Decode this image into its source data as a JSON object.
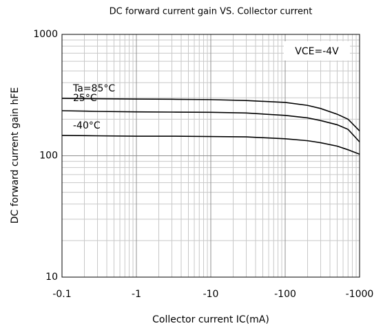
{
  "chart_data": {
    "type": "line",
    "title": "DC forward current gain VS. Collector current",
    "xlabel": "Collector current  IC(mA)",
    "ylabel": "DC forward current gain hFE",
    "annotation": "VCE=-4V",
    "x": [
      -0.1,
      -0.3,
      -1,
      -3,
      -10,
      -30,
      -100,
      -200,
      -300,
      -500,
      -700,
      -1000
    ],
    "series": [
      {
        "name": "Ta=85°C",
        "color": "#000000",
        "values": [
          297,
          295,
          293,
          292,
          290,
          285,
          275,
          260,
          245,
          220,
          200,
          160
        ]
      },
      {
        "name": "25°C",
        "color": "#000000",
        "values": [
          235,
          232,
          230,
          229,
          228,
          225,
          215,
          205,
          195,
          180,
          165,
          130
        ]
      },
      {
        "name": "-40°C",
        "color": "#000000",
        "values": [
          147,
          146,
          145,
          145,
          144,
          143,
          138,
          133,
          128,
          120,
          112,
          103
        ]
      }
    ],
    "xlim": [
      -0.1,
      -1000
    ],
    "ylim": [
      10,
      1000
    ],
    "xticks": [
      -0.1,
      -1,
      -10,
      -100,
      -1000
    ],
    "yticks": [
      10,
      100,
      1000
    ],
    "xscale": "log",
    "yscale": "log",
    "grid": true
  }
}
